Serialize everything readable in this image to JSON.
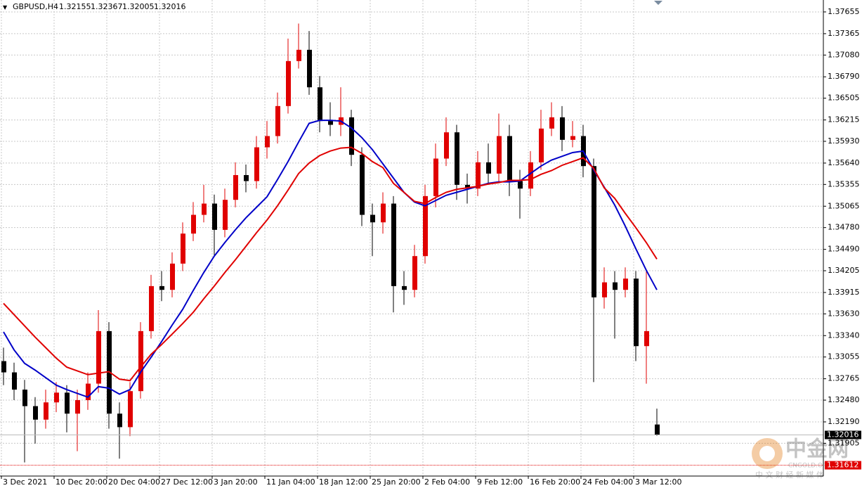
{
  "chart_data": {
    "type": "candlestick",
    "symbol": "GBPUSD,H4",
    "up_color": "#e00000",
    "down_color": "#000000",
    "grid": true,
    "ylim": [
      1.31468,
      1.37767
    ],
    "yticks": [
      1.37655,
      1.37365,
      {
        "value": 1.3708,
        "label": "1.37080"
      },
      {
        "value": 1.3679,
        "label": "1.36790"
      },
      1.36505,
      1.36215,
      {
        "value": 1.3593,
        "label": "1.35930"
      },
      {
        "value": 1.3564,
        "label": "1.35640"
      },
      1.35355,
      1.35065,
      {
        "value": 1.3478,
        "label": "1.34780"
      },
      {
        "value": 1.3449,
        "label": "1.34490"
      },
      1.34205,
      1.33915,
      {
        "value": 1.3363,
        "label": "1.33630"
      },
      {
        "value": 1.3334,
        "label": "1.33340"
      },
      1.33055,
      1.32765,
      {
        "value": 1.3248,
        "label": "1.32480"
      },
      {
        "value": 1.3219,
        "label": "1.32190"
      },
      1.31905
    ],
    "categories": [
      "3 Dec 2021",
      null,
      null,
      null,
      null,
      "10 Dec 20:00",
      null,
      null,
      null,
      null,
      "20 Dec 04:00",
      null,
      null,
      null,
      null,
      "27 Dec 12:00",
      null,
      null,
      null,
      null,
      "3 Jan 20:00",
      null,
      null,
      null,
      null,
      "11 Jan 04:00",
      null,
      null,
      null,
      null,
      "18 Jan 12:00",
      null,
      null,
      null,
      null,
      "25 Jan 20:00",
      null,
      null,
      null,
      null,
      "2 Feb 04:00",
      null,
      null,
      null,
      null,
      "9 Feb 12:00",
      null,
      null,
      null,
      null,
      "16 Feb 20:00",
      null,
      null,
      null,
      null,
      "24 Feb 04:00",
      null,
      null,
      null,
      null,
      "3 Mar 12:00",
      null,
      null
    ],
    "open": [
      1.33,
      1.3285,
      1.3262,
      1.324,
      1.3222,
      1.3245,
      1.3258,
      1.323,
      1.3248,
      1.327,
      1.334,
      1.323,
      1.3212,
      1.326,
      1.334,
      1.34,
      1.3395,
      1.343,
      1.347,
      1.3495,
      1.351,
      1.3475,
      1.3515,
      1.3548,
      1.354,
      1.3585,
      1.36,
      1.364,
      1.37,
      1.3715,
      1.3665,
      1.362,
      1.3615,
      1.3625,
      1.3575,
      1.3495,
      1.3485,
      1.351,
      1.34,
      1.3395,
      1.344,
      1.352,
      1.357,
      1.3605,
      1.3535,
      1.353,
      1.3565,
      1.355,
      1.36,
      1.354,
      1.353,
      1.3565,
      1.361,
      1.3625,
      1.3595,
      1.36,
      1.356,
      1.3385,
      1.3405,
      1.3395,
      1.341,
      1.332,
      1.32155
    ],
    "high": [
      1.3318,
      1.3298,
      1.3275,
      1.3252,
      1.3262,
      1.3272,
      1.3268,
      1.3262,
      1.3285,
      1.3368,
      1.3352,
      1.3245,
      1.3272,
      1.3352,
      1.3415,
      1.342,
      1.3445,
      1.3485,
      1.3512,
      1.3535,
      1.3522,
      1.353,
      1.3565,
      1.3562,
      1.36,
      1.362,
      1.3658,
      1.373,
      1.375,
      1.374,
      1.368,
      1.3645,
      1.3665,
      1.3635,
      1.3585,
      1.351,
      1.3525,
      1.352,
      1.342,
      1.3455,
      1.3535,
      1.359,
      1.3625,
      1.3615,
      1.355,
      1.358,
      1.359,
      1.363,
      1.3615,
      1.3555,
      1.358,
      1.3635,
      1.3645,
      1.364,
      1.362,
      1.3615,
      1.357,
      1.3425,
      1.342,
      1.3425,
      1.342,
      1.342,
      1.32367
    ],
    "low": [
      1.3268,
      1.3248,
      1.3165,
      1.319,
      1.321,
      1.3232,
      1.3205,
      1.318,
      1.3235,
      1.3258,
      1.321,
      1.317,
      1.32,
      1.325,
      1.333,
      1.338,
      1.3385,
      1.342,
      1.346,
      1.3485,
      1.344,
      1.3465,
      1.3505,
      1.3525,
      1.353,
      1.357,
      1.359,
      1.363,
      1.369,
      1.3655,
      1.3605,
      1.36,
      1.36,
      1.356,
      1.348,
      1.344,
      1.347,
      1.3365,
      1.3375,
      1.3385,
      1.343,
      1.3505,
      1.356,
      1.3515,
      1.351,
      1.352,
      1.3535,
      1.354,
      1.352,
      1.349,
      1.352,
      1.3555,
      1.36,
      1.358,
      1.3585,
      1.3545,
      1.3272,
      1.337,
      1.333,
      1.3385,
      1.33,
      1.327,
      1.32005
    ],
    "close": [
      1.3285,
      1.3262,
      1.324,
      1.3222,
      1.3245,
      1.3258,
      1.323,
      1.3248,
      1.327,
      1.334,
      1.323,
      1.3212,
      1.326,
      1.334,
      1.34,
      1.3395,
      1.343,
      1.347,
      1.3495,
      1.351,
      1.3475,
      1.3515,
      1.3548,
      1.354,
      1.3585,
      1.36,
      1.364,
      1.37,
      1.3715,
      1.3665,
      1.362,
      1.3615,
      1.3625,
      1.3575,
      1.3495,
      1.3485,
      1.351,
      1.34,
      1.3395,
      1.344,
      1.352,
      1.357,
      1.3605,
      1.3535,
      1.353,
      1.3565,
      1.355,
      1.36,
      1.354,
      1.353,
      1.3565,
      1.361,
      1.3625,
      1.3595,
      1.36,
      1.356,
      1.3385,
      1.3405,
      1.3395,
      1.341,
      1.332,
      1.334,
      1.32016
    ],
    "series": [
      {
        "color": "#0000c8",
        "values": [
          1.3339,
          1.3315,
          1.3297,
          1.3288,
          1.3278,
          1.3268,
          1.3262,
          1.3257,
          1.3252,
          1.3266,
          1.3264,
          1.3256,
          1.3262,
          1.3285,
          1.3305,
          1.3326,
          1.3348,
          1.3369,
          1.3394,
          1.3418,
          1.344,
          1.3458,
          1.3475,
          1.3491,
          1.3505,
          1.3519,
          1.3542,
          1.3566,
          1.3592,
          1.3617,
          1.3621,
          1.3621,
          1.362,
          1.3611,
          1.3598,
          1.3582,
          1.3563,
          1.3544,
          1.3525,
          1.3512,
          1.3507,
          1.3514,
          1.3521,
          1.3525,
          1.3529,
          1.3533,
          1.3537,
          1.3539,
          1.3539,
          1.354,
          1.355,
          1.356,
          1.3568,
          1.3573,
          1.3578,
          1.358,
          1.3555,
          1.3532,
          1.3508,
          1.348,
          1.345,
          1.3421,
          1.3395
        ]
      },
      {
        "color": "#e00000",
        "values": [
          1.3377,
          1.3362,
          1.3347,
          1.3332,
          1.3318,
          1.3304,
          1.3292,
          1.3287,
          1.3282,
          1.3284,
          1.3286,
          1.3276,
          1.3274,
          1.3292,
          1.3309,
          1.3322,
          1.3336,
          1.335,
          1.3365,
          1.3383,
          1.34,
          1.3418,
          1.3435,
          1.3453,
          1.3471,
          1.3488,
          1.3507,
          1.3528,
          1.355,
          1.3564,
          1.3574,
          1.358,
          1.3584,
          1.3585,
          1.3577,
          1.3566,
          1.3558,
          1.3537,
          1.3525,
          1.3513,
          1.351,
          1.3518,
          1.3525,
          1.3529,
          1.3531,
          1.3533,
          1.3536,
          1.3538,
          1.3541,
          1.3541,
          1.3542,
          1.3549,
          1.3554,
          1.3561,
          1.3566,
          1.3571,
          1.3557,
          1.3531,
          1.3517,
          1.3497,
          1.3478,
          1.3458,
          1.3436
        ]
      }
    ],
    "hline": 1.31612,
    "hline_color": "#e00000"
  },
  "watermark": {
    "name": "中金网",
    "domain": "CNGOLD.ORG",
    "tagline": "中 文 财 经 新 媒 体"
  }
}
